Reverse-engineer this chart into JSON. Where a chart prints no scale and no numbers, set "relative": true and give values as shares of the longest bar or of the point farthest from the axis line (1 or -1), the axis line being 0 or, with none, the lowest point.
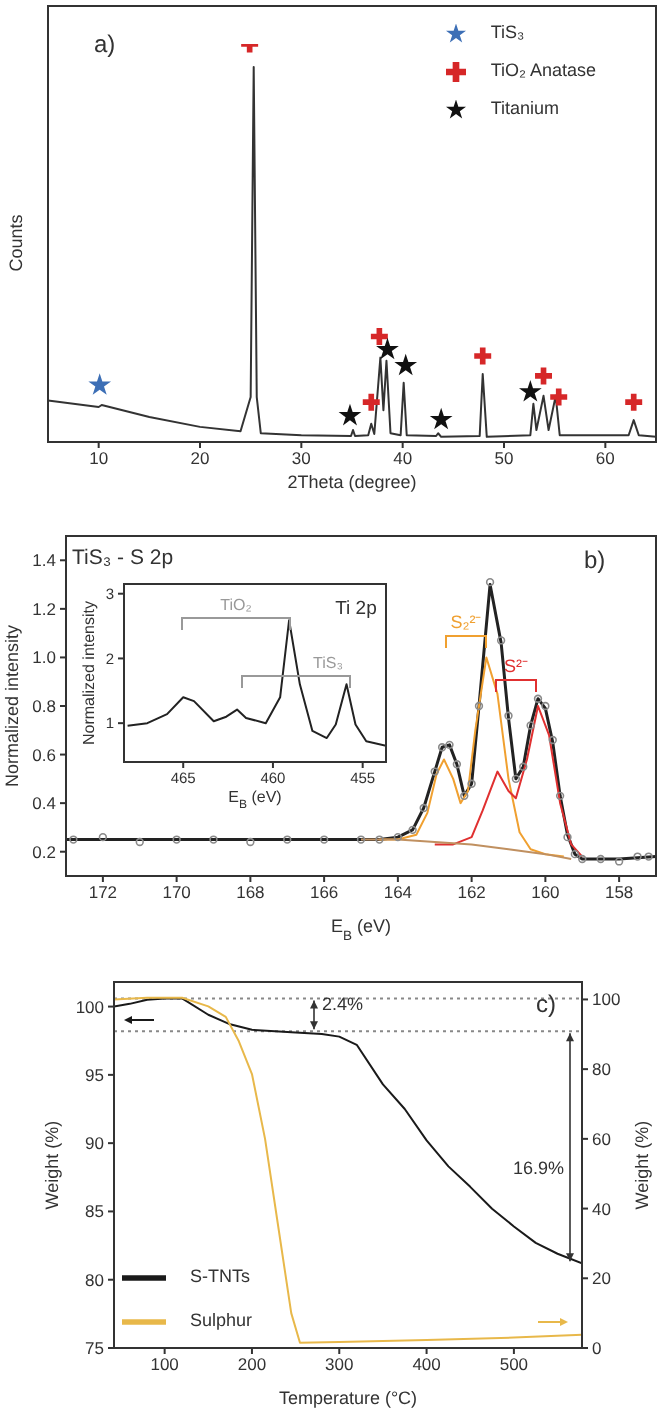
{
  "chart_data": [
    {
      "type": "line",
      "xlabel": "2Theta (degree)",
      "ylabel": "Counts",
      "relative": true,
      "xlim": [
        5,
        65
      ],
      "xticks": [
        10,
        20,
        30,
        40,
        50,
        60
      ],
      "legend": "top right",
      "annotations": [
        "a)"
      ],
      "series": [
        {
          "color": "#333333",
          "x": [
            5,
            10,
            10.3,
            15,
            20,
            24,
            25.0,
            25.3,
            25.6,
            26,
            30,
            34.9,
            35.1,
            35.3,
            36.6,
            36.9,
            37.2,
            37.8,
            38.1,
            38.4,
            38.8,
            39.8,
            40.1,
            40.4,
            43.3,
            43.5,
            43.8,
            47.6,
            47.9,
            48.3,
            52.6,
            52.9,
            53.2,
            53.9,
            54.4,
            55.1,
            55.5,
            62.3,
            62.8,
            63.3,
            65
          ],
          "values": [
            0.104,
            0.088,
            0.093,
            0.063,
            0.038,
            0.027,
            0.113,
            0.942,
            0.113,
            0.022,
            0.017,
            0.015,
            0.03,
            0.015,
            0.017,
            0.046,
            0.02,
            0.212,
            0.08,
            0.204,
            0.022,
            0.017,
            0.149,
            0.017,
            0.015,
            0.022,
            0.013,
            0.015,
            0.171,
            0.013,
            0.017,
            0.096,
            0.03,
            0.116,
            0.03,
            0.116,
            0.017,
            0.017,
            0.055,
            0.017,
            0.013
          ]
        },
        {
          "type": "scatter",
          "name": "TiS₃",
          "color": "#3d6fb6",
          "marker": "star",
          "x": [
            10.1
          ],
          "values": [
            0.143
          ]
        },
        {
          "type": "scatter",
          "name": "TiO₂ Anatase",
          "color": "#d62728",
          "marker": "cross",
          "x": [
            24.9,
            36.9,
            37.7,
            47.9,
            53.9,
            55.4,
            62.8
          ],
          "values": [
            1.0,
            0.1,
            0.265,
            0.216,
            0.166,
            0.113,
            0.1
          ]
        },
        {
          "type": "scatter",
          "name": "Titanium",
          "color": "#111111",
          "marker": "star",
          "x": [
            34.8,
            38.5,
            40.3,
            43.8,
            52.6
          ],
          "values": [
            0.066,
            0.232,
            0.192,
            0.056,
            0.126
          ]
        }
      ]
    },
    {
      "type": "line",
      "title": "TiS₃ - S 2p",
      "xlabel": "E$_{B}$ (eV)",
      "ylabel": "Normalized intensity",
      "xlim": [
        173,
        157
      ],
      "xticks": [
        172,
        170,
        168,
        166,
        164,
        162,
        160,
        158
      ],
      "ylim": [
        0.1,
        1.5
      ],
      "yticks": [
        0.2,
        0.4,
        0.6,
        0.8,
        {
          "value": 1,
          "label": "1.0"
        },
        1.2,
        1.4
      ],
      "annotations": [
        "b)",
        "S₂²⁻",
        "S²⁻"
      ],
      "series": [
        {
          "type": "scatter",
          "color": "#8a8a8a",
          "marker": "circle",
          "x": [
            172.8,
            172,
            171,
            170,
            169,
            168,
            167,
            166,
            165,
            164.5,
            164,
            163.6,
            163.3,
            163.0,
            162.8,
            162.6,
            162.4,
            162.2,
            162.0,
            161.8,
            161.5,
            161.2,
            161.0,
            160.8,
            160.6,
            160.4,
            160.2,
            160.0,
            159.8,
            159.6,
            159.4,
            159.2,
            159.0,
            158.5,
            158,
            157.5,
            157.2
          ],
          "values": [
            0.25,
            0.26,
            0.24,
            0.25,
            0.25,
            0.24,
            0.25,
            0.25,
            0.25,
            0.25,
            0.26,
            0.29,
            0.38,
            0.53,
            0.63,
            0.64,
            0.56,
            0.43,
            0.48,
            0.8,
            1.31,
            1.07,
            0.76,
            0.5,
            0.55,
            0.72,
            0.83,
            0.8,
            0.66,
            0.43,
            0.26,
            0.19,
            0.17,
            0.17,
            0.16,
            0.18,
            0.18
          ]
        },
        {
          "color": "#222222",
          "x": [
            173,
            170,
            167,
            164.5,
            164,
            163.6,
            163.3,
            163,
            162.8,
            162.6,
            162.4,
            162.2,
            162,
            161.8,
            161.5,
            161.2,
            161,
            160.8,
            160.6,
            160.4,
            160.2,
            160,
            159.8,
            159.6,
            159.4,
            159.2,
            159,
            158.5,
            158,
            157
          ],
          "values": [
            0.25,
            0.25,
            0.25,
            0.25,
            0.26,
            0.29,
            0.38,
            0.53,
            0.63,
            0.64,
            0.56,
            0.43,
            0.48,
            0.8,
            1.3,
            1.06,
            0.75,
            0.5,
            0.55,
            0.72,
            0.83,
            0.79,
            0.65,
            0.43,
            0.27,
            0.19,
            0.17,
            0.17,
            0.17,
            0.18
          ]
        },
        {
          "color": "#f0a030",
          "x": [
            164.5,
            164,
            163.5,
            163.2,
            162.95,
            162.75,
            162.5,
            162.3,
            162.1,
            161.9,
            161.6,
            161.3,
            161.0,
            160.7,
            160.4,
            160,
            159.5
          ],
          "values": [
            0.25,
            0.25,
            0.27,
            0.36,
            0.52,
            0.58,
            0.5,
            0.4,
            0.45,
            0.7,
            1.0,
            0.85,
            0.5,
            0.28,
            0.21,
            0.19,
            0.18
          ]
        },
        {
          "color": "#e03030",
          "x": [
            163,
            162.5,
            162.0,
            161.7,
            161.3,
            161.0,
            160.8,
            160.5,
            160.2,
            159.9,
            159.6,
            159.3,
            159
          ],
          "values": [
            0.23,
            0.23,
            0.26,
            0.37,
            0.53,
            0.45,
            0.42,
            0.58,
            0.8,
            0.68,
            0.4,
            0.23,
            0.18
          ]
        },
        {
          "color": "#c09060",
          "x": [
            165,
            164,
            163,
            162,
            161,
            160,
            159.3
          ],
          "values": [
            0.25,
            0.25,
            0.24,
            0.23,
            0.21,
            0.19,
            0.17
          ]
        }
      ]
    },
    {
      "type": "line",
      "title": "Ti 2p",
      "xlabel": "E$_{B}$ (eV)",
      "ylabel": "Normalized intensity",
      "xlim": [
        468.3,
        453.7
      ],
      "xticks": [
        465,
        460,
        455
      ],
      "ylim": [
        0.4,
        3.15
      ],
      "yticks": [
        1,
        2,
        3
      ],
      "annotations": [
        "TiO₂",
        "TiS₃"
      ],
      "series": [
        {
          "color": "#222222",
          "x": [
            468.1,
            467.0,
            465.9,
            465,
            464.4,
            463.3,
            462.6,
            462.0,
            461.5,
            460.4,
            459.6,
            459.1,
            458.5,
            457.8,
            457.0,
            456.5,
            455.9,
            455.4,
            454.8,
            453.7
          ],
          "values": [
            0.96,
            1.0,
            1.14,
            1.4,
            1.34,
            1.03,
            1.1,
            1.21,
            1.08,
            1.0,
            1.4,
            2.59,
            1.6,
            0.88,
            0.77,
            0.98,
            1.6,
            0.98,
            0.72,
            0.65
          ]
        }
      ]
    },
    {
      "type": "line",
      "xlabel": "Temperature (°C)",
      "ylabel": "Weight (%)",
      "y2label": "Weight (%)",
      "xlim": [
        42,
        578
      ],
      "xticks": [
        100,
        200,
        300,
        400,
        500
      ],
      "ylim": [
        75,
        101.8
      ],
      "yticks": [
        75,
        80,
        85,
        90,
        95,
        100
      ],
      "y2lim": [
        0,
        105
      ],
      "y2ticks": [
        0,
        20,
        40,
        60,
        80,
        100
      ],
      "legend": "bottom left",
      "annotations": [
        "c)",
        "2.4%",
        "16.9%"
      ],
      "ref_lines": [
        {
          "axis": "y",
          "value": 100.6,
          "color": "#888888",
          "line_style": "dotted"
        },
        {
          "axis": "y",
          "value": 98.2,
          "color": "#888888",
          "line_style": "dotted"
        }
      ],
      "series": [
        {
          "name": "S-TNTs",
          "color": "#1a1a1a",
          "x": [
            42,
            60,
            80,
            100,
            120,
            150,
            175,
            200,
            250,
            280,
            300,
            320,
            350,
            375,
            400,
            425,
            450,
            475,
            500,
            525,
            550,
            578
          ],
          "values": [
            100.0,
            100.2,
            100.5,
            100.6,
            100.6,
            99.4,
            98.7,
            98.3,
            98.1,
            98.0,
            97.8,
            97.2,
            94.3,
            92.5,
            90.2,
            88.3,
            86.8,
            85.2,
            83.9,
            82.7,
            81.9,
            81.2
          ]
        },
        {
          "name": "Sulphur",
          "color": "#e8b84a",
          "axis": "y2",
          "x": [
            42,
            80,
            120,
            150,
            170,
            185,
            200,
            215,
            230,
            245,
            255,
            300,
            400,
            500,
            578
          ],
          "values": [
            100,
            100.5,
            100.5,
            98,
            95,
            88,
            78.6,
            60,
            35,
            10,
            1.5,
            1.7,
            2.3,
            3.0,
            3.8
          ]
        }
      ]
    }
  ]
}
